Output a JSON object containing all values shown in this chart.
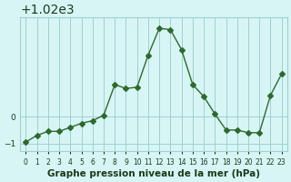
{
  "x": [
    0,
    1,
    2,
    3,
    4,
    5,
    6,
    7,
    8,
    9,
    10,
    11,
    12,
    13,
    14,
    15,
    16,
    17,
    18,
    19,
    20,
    21,
    22,
    23
  ],
  "y": [
    1019.05,
    1019.3,
    1019.45,
    1019.45,
    1019.6,
    1019.75,
    1019.85,
    1020.05,
    1021.2,
    1021.05,
    1021.1,
    1022.3,
    1023.3,
    1023.25,
    1022.5,
    1021.2,
    1020.75,
    1020.1,
    1019.5,
    1019.5,
    1019.4,
    1019.4,
    1020.8,
    1021.6
  ],
  "line_color": "#2d6a2d",
  "marker": "D",
  "marker_size": 3,
  "bg_color": "#d8f5f5",
  "grid_color": "#a0d0d0",
  "xlabel": "Graphe pression niveau de la mer (hPa)",
  "xlabel_color": "#1a3a1a",
  "xlabel_fontsize": 7.5,
  "ytick_label_color": "#1a3a1a",
  "xtick_label_color": "#1a3a1a",
  "ylim": [
    1018.7,
    1023.7
  ],
  "yticks": [
    1019,
    1020
  ],
  "xlim": [
    -0.5,
    23.5
  ]
}
